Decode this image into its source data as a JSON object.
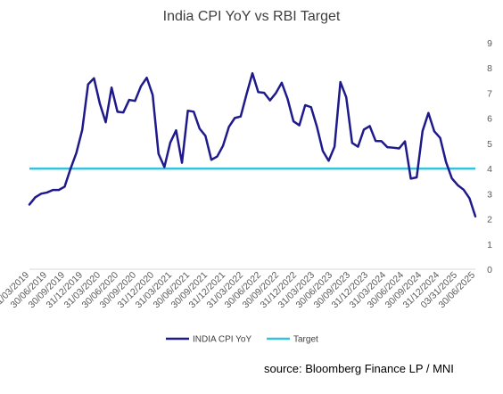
{
  "chart_data": {
    "type": "line",
    "title": "India CPI YoY vs RBI Target",
    "ylim": [
      0,
      9
    ],
    "y_ticks": [
      "0",
      "1",
      "2",
      "3",
      "4",
      "5",
      "6",
      "7",
      "8",
      "9"
    ],
    "grid": false,
    "legend_position": "bottom",
    "x_tick_labels": [
      "31/03/2019",
      "30/06/2019",
      "30/09/2019",
      "31/12/2019",
      "31/03/2020",
      "30/06/2020",
      "30/09/2020",
      "31/12/2020",
      "31/03/2021",
      "30/06/2021",
      "30/09/2021",
      "31/12/2021",
      "31/03/2022",
      "30/06/2022",
      "30/09/2022",
      "31/12/2022",
      "31/03/2023",
      "30/06/2023",
      "30/09/2023",
      "31/12/2023",
      "31/03/2024",
      "30/06/2024",
      "30/09/2024",
      "31/12/2024",
      "03/31/2025",
      "30/06/2025"
    ],
    "series": [
      {
        "name": "INDIA CPI YoY",
        "color": "#1f1a8c",
        "values": [
          2.57,
          2.86,
          3.0,
          3.05,
          3.15,
          3.15,
          3.28,
          3.99,
          4.62,
          5.54,
          7.35,
          7.59,
          6.58,
          5.84,
          7.22,
          6.26,
          6.23,
          6.73,
          6.69,
          7.27,
          7.61,
          6.93,
          4.59,
          4.06,
          5.03,
          5.52,
          4.23,
          6.3,
          6.26,
          5.59,
          5.3,
          4.35,
          4.48,
          4.91,
          5.66,
          6.01,
          6.07,
          6.95,
          7.79,
          7.04,
          7.01,
          6.71,
          7.0,
          7.41,
          6.77,
          5.88,
          5.72,
          6.52,
          6.44,
          5.66,
          4.7,
          4.31,
          4.87,
          7.44,
          6.83,
          5.02,
          4.87,
          5.55,
          5.69,
          5.1,
          5.09,
          4.85,
          4.83,
          4.8,
          5.08,
          3.6,
          3.65,
          5.49,
          6.21,
          5.48,
          5.22,
          4.26,
          3.61,
          3.34,
          3.16,
          2.82,
          2.1
        ]
      },
      {
        "name": "Target",
        "color": "#33c3dc",
        "values": [
          4,
          4
        ]
      }
    ]
  },
  "source": "source: Bloomberg Finance LP / MNI"
}
